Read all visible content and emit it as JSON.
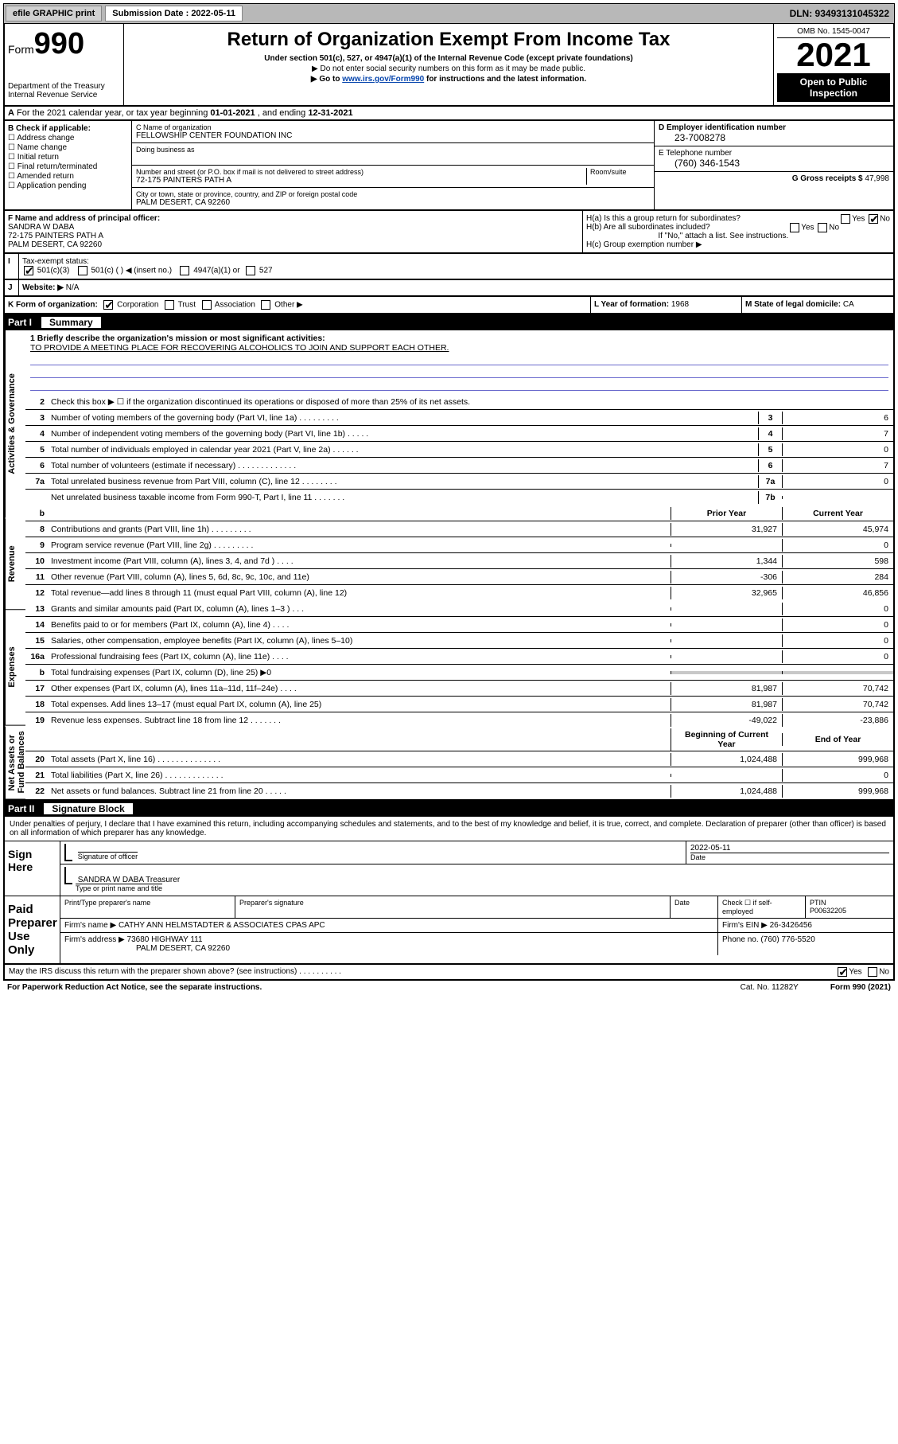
{
  "topbar": {
    "btn1": "efile GRAPHIC print",
    "sub_label": "Submission Date : 2022-05-11",
    "dln": "DLN: 93493131045322"
  },
  "header": {
    "form_word": "Form",
    "form_num": "990",
    "dept": "Department of the Treasury",
    "irs": "Internal Revenue Service",
    "title": "Return of Organization Exempt From Income Tax",
    "sub1": "Under section 501(c), 527, or 4947(a)(1) of the Internal Revenue Code (except private foundations)",
    "sub2": "▶ Do not enter social security numbers on this form as it may be made public.",
    "sub3_pre": "▶ Go to ",
    "sub3_link": "www.irs.gov/Form990",
    "sub3_post": " for instructions and the latest information.",
    "omb": "OMB No. 1545-0047",
    "year": "2021",
    "openpub": "Open to Public Inspection"
  },
  "rowA": {
    "label": "A",
    "text_pre": "For the 2021 calendar year, or tax year beginning ",
    "begin": "01-01-2021",
    "mid": " , and ending ",
    "end": "12-31-2021"
  },
  "entity": {
    "B_label": "B Check if applicable:",
    "B_items": [
      "Address change",
      "Name change",
      "Initial return",
      "Final return/terminated",
      "Amended return",
      "Application pending"
    ],
    "C_hint": "C Name of organization",
    "C_name": "FELLOWSHIP CENTER FOUNDATION INC",
    "dba_hint": "Doing business as",
    "addr_hint": "Number and street (or P.O. box if mail is not delivered to street address)",
    "room_hint": "Room/suite",
    "addr": "72-175 PAINTERS PATH A",
    "city_hint": "City or town, state or province, country, and ZIP or foreign postal code",
    "city": "PALM DESERT, CA  92260",
    "D_label": "D Employer identification number",
    "D_val": "23-7008278",
    "E_label": "E Telephone number",
    "E_val": "(760) 346-1543",
    "G_label": "G Gross receipts $",
    "G_val": "47,998"
  },
  "rowFH": {
    "F_label": "F Name and address of principal officer:",
    "F_name": "SANDRA W DABA",
    "F_addr1": "72-175 PAINTERS PATH A",
    "F_addr2": "PALM DESERT, CA  92260",
    "Ha_label": "H(a)  Is this a group return for subordinates?",
    "Ha_yes": "Yes",
    "Ha_no": "No",
    "Hb_label": "H(b)  Are all subordinates included?",
    "Hb_yes": "Yes",
    "Hb_no": "No",
    "Hb_note": "If \"No,\" attach a list. See instructions.",
    "Hc_label": "H(c)  Group exemption number ▶"
  },
  "rowI": {
    "I_label": "I",
    "I_text": "Tax-exempt status:",
    "opt1": "501(c)(3)",
    "opt2": "501(c) (  ) ◀ (insert no.)",
    "opt3": "4947(a)(1) or",
    "opt4": "527",
    "J_label": "J",
    "J_text": "Website: ▶",
    "J_val": "N/A"
  },
  "rowK": {
    "K_label": "K Form of organization:",
    "opts": [
      "Corporation",
      "Trust",
      "Association",
      "Other ▶"
    ],
    "L_label": "L Year of formation:",
    "L_val": "1968",
    "M_label": "M State of legal domicile:",
    "M_val": "CA"
  },
  "part1": {
    "part": "Part I",
    "title": "Summary"
  },
  "mission": {
    "q1": "1  Briefly describe the organization's mission or most significant activities:",
    "text": "TO PROVIDE A MEETING PLACE FOR RECOVERING ALCOHOLICS TO JOIN AND SUPPORT EACH OTHER."
  },
  "sidetabs": [
    "Activities & Governance",
    "Revenue",
    "Expenses",
    "Net Assets or Fund Balances"
  ],
  "summary": {
    "line2": "Check this box ▶ ☐  if the organization discontinued its operations or disposed of more than 25% of its net assets.",
    "rows_top": [
      {
        "n": "3",
        "d": "Number of voting members of the governing body (Part VI, line 1a)  .  .  .  .  .  .  .  .  .",
        "b": "3",
        "v": "6"
      },
      {
        "n": "4",
        "d": "Number of independent voting members of the governing body (Part VI, line 1b)  .  .  .  .  .",
        "b": "4",
        "v": "7"
      },
      {
        "n": "5",
        "d": "Total number of individuals employed in calendar year 2021 (Part V, line 2a)  .  .  .  .  .  .",
        "b": "5",
        "v": "0"
      },
      {
        "n": "6",
        "d": "Total number of volunteers (estimate if necessary)  .  .  .  .  .  .  .  .  .  .  .  .  .",
        "b": "6",
        "v": "7"
      },
      {
        "n": "7a",
        "d": "Total unrelated business revenue from Part VIII, column (C), line 12  .  .  .  .  .  .  .  .",
        "b": "7a",
        "v": "0"
      },
      {
        "n": "",
        "d": "Net unrelated business taxable income from Form 990-T, Part I, line 11  .  .  .  .  .  .  .",
        "b": "7b",
        "v": ""
      }
    ],
    "col_hdr": {
      "b": "b",
      "py": "Prior Year",
      "cy": "Current Year"
    },
    "rows_rev": [
      {
        "n": "8",
        "d": "Contributions and grants (Part VIII, line 1h)  .  .  .  .  .  .  .  .  .",
        "py": "31,927",
        "cy": "45,974"
      },
      {
        "n": "9",
        "d": "Program service revenue (Part VIII, line 2g)  .  .  .  .  .  .  .  .  .",
        "py": "",
        "cy": "0"
      },
      {
        "n": "10",
        "d": "Investment income (Part VIII, column (A), lines 3, 4, and 7d )  .  .  .  .",
        "py": "1,344",
        "cy": "598"
      },
      {
        "n": "11",
        "d": "Other revenue (Part VIII, column (A), lines 5, 6d, 8c, 9c, 10c, and 11e)",
        "py": "-306",
        "cy": "284"
      },
      {
        "n": "12",
        "d": "Total revenue—add lines 8 through 11 (must equal Part VIII, column (A), line 12)",
        "py": "32,965",
        "cy": "46,856"
      }
    ],
    "rows_exp": [
      {
        "n": "13",
        "d": "Grants and similar amounts paid (Part IX, column (A), lines 1–3 )  .  .  .",
        "py": "",
        "cy": "0"
      },
      {
        "n": "14",
        "d": "Benefits paid to or for members (Part IX, column (A), line 4)  .  .  .  .",
        "py": "",
        "cy": "0"
      },
      {
        "n": "15",
        "d": "Salaries, other compensation, employee benefits (Part IX, column (A), lines 5–10)",
        "py": "",
        "cy": "0"
      },
      {
        "n": "16a",
        "d": "Professional fundraising fees (Part IX, column (A), line 11e)  .  .  .  .",
        "py": "",
        "cy": "0"
      },
      {
        "n": "b",
        "d": "Total fundraising expenses (Part IX, column (D), line 25) ▶0",
        "py": "shade",
        "cy": "shade"
      },
      {
        "n": "17",
        "d": "Other expenses (Part IX, column (A), lines 11a–11d, 11f–24e)  .  .  .  .",
        "py": "81,987",
        "cy": "70,742"
      },
      {
        "n": "18",
        "d": "Total expenses. Add lines 13–17 (must equal Part IX, column (A), line 25)",
        "py": "81,987",
        "cy": "70,742"
      },
      {
        "n": "19",
        "d": "Revenue less expenses. Subtract line 18 from line 12  .  .  .  .  .  .  .",
        "py": "-49,022",
        "cy": "-23,886"
      }
    ],
    "col_hdr2": {
      "py": "Beginning of Current Year",
      "cy": "End of Year"
    },
    "rows_net": [
      {
        "n": "20",
        "d": "Total assets (Part X, line 16)  .  .  .  .  .  .  .  .  .  .  .  .  .  .",
        "py": "1,024,488",
        "cy": "999,968"
      },
      {
        "n": "21",
        "d": "Total liabilities (Part X, line 26)  .  .  .  .  .  .  .  .  .  .  .  .  .",
        "py": "",
        "cy": "0"
      },
      {
        "n": "22",
        "d": "Net assets or fund balances. Subtract line 21 from line 20  .  .  .  .  .",
        "py": "1,024,488",
        "cy": "999,968"
      }
    ]
  },
  "part2": {
    "part": "Part II",
    "title": "Signature Block"
  },
  "sig": {
    "warn": "Under penalties of perjury, I declare that I have examined this return, including accompanying schedules and statements, and to the best of my knowledge and belief, it is true, correct, and complete. Declaration of preparer (other than officer) is based on all information of which preparer has any knowledge.",
    "sign_here": "Sign Here",
    "sig_officer": "Signature of officer",
    "date_lbl": "Date",
    "date_val": "2022-05-11",
    "name_title": "SANDRA W DABA  Treasurer",
    "name_hint": "Type or print name and title",
    "paid": "Paid Preparer Use Only",
    "pp_name_lbl": "Print/Type preparer's name",
    "pp_sig_lbl": "Preparer's signature",
    "pp_date_lbl": "Date",
    "pp_check": "Check ☐ if self-employed",
    "ptin_lbl": "PTIN",
    "ptin_val": "P00632205",
    "firm_name_lbl": "Firm's name    ▶",
    "firm_name": "CATHY ANN HELMSTADTER & ASSOCIATES CPAS APC",
    "firm_ein_lbl": "Firm's EIN ▶",
    "firm_ein": "26-3426456",
    "firm_addr_lbl": "Firm's address ▶",
    "firm_addr1": "73680 HIGHWAY 111",
    "firm_addr2": "PALM DESERT, CA  92260",
    "phone_lbl": "Phone no.",
    "phone": "(760) 776-5520"
  },
  "footrow": {
    "q": "May the IRS discuss this return with the preparer shown above? (see instructions)  .  .  .  .  .  .  .  .  .  .",
    "yes": "Yes",
    "no": "No"
  },
  "pgfoot": {
    "l": "For Paperwork Reduction Act Notice, see the separate instructions.",
    "m": "Cat. No. 11282Y",
    "r": "Form 990 (2021)"
  },
  "colors": {
    "topbar_bg": "#b8b8b8",
    "link": "#0645ad",
    "shade": "#c8c8c8",
    "missionline": "#6a6acd"
  }
}
